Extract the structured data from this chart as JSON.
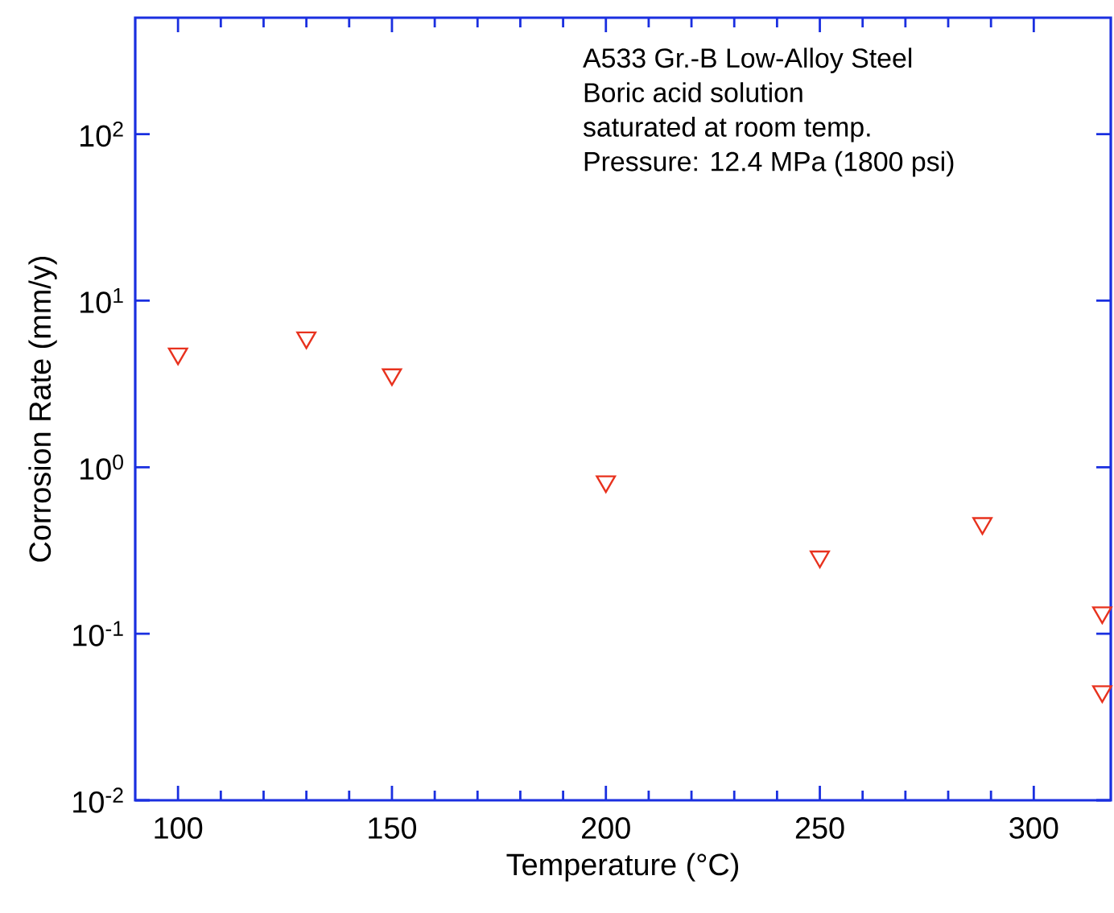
{
  "chart_data": {
    "type": "scatter",
    "xlabel": "Temperature (°C)",
    "ylabel": "Corrosion Rate (mm/y)",
    "annotations": [
      "A533 Gr.-B Low-Alloy Steel",
      "Boric acid solution",
      "saturated at room temp.",
      "Pressure: 12.4 MPa (1800 psi)"
    ],
    "x": [
      100,
      130,
      150,
      200,
      250,
      288,
      316,
      316
    ],
    "series": [
      {
        "color": "#e8321e",
        "values": [
          4.8,
          6.0,
          3.6,
          0.82,
          0.29,
          0.46,
          0.134,
          0.045
        ]
      }
    ],
    "marker": "triangle",
    "log": "y",
    "xlim": [
      90,
      318
    ],
    "xticks": [
      100,
      150,
      200,
      250,
      300
    ],
    "ylim": [
      0.01,
      500
    ],
    "yticks": [
      {
        "value": 0.01,
        "label": "10$^{-2}$"
      },
      {
        "value": 0.1,
        "label": "10$^{-1}$"
      },
      {
        "value": 1,
        "label": "10$^{0}$"
      },
      {
        "value": 10,
        "label": "10$^{1}$"
      },
      {
        "value": 100,
        "label": "10$^{2}$"
      }
    ]
  }
}
